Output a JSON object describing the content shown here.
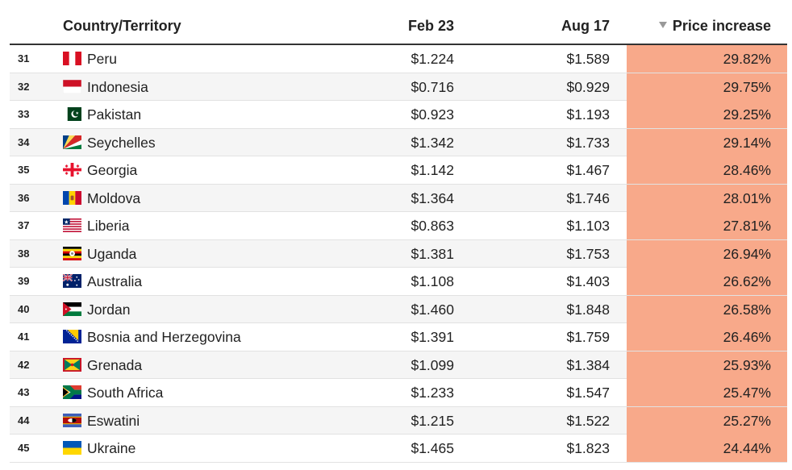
{
  "table": {
    "headers": {
      "country": "Country/Territory",
      "feb": "Feb 23",
      "aug": "Aug 17",
      "increase": "Price increase"
    },
    "sort": {
      "column": "increase",
      "direction": "descending",
      "icon": "sort-desc-icon"
    },
    "highlight_color": "#f8a98a",
    "rows": [
      {
        "rank": "31",
        "country": "Peru",
        "flag": "peru-flag-icon",
        "feb": "$1.224",
        "aug": "$1.589",
        "increase": "29.82%"
      },
      {
        "rank": "32",
        "country": "Indonesia",
        "flag": "indonesia-flag-icon",
        "feb": "$0.716",
        "aug": "$0.929",
        "increase": "29.75%"
      },
      {
        "rank": "33",
        "country": "Pakistan",
        "flag": "pakistan-flag-icon",
        "feb": "$0.923",
        "aug": "$1.193",
        "increase": "29.25%"
      },
      {
        "rank": "34",
        "country": "Seychelles",
        "flag": "seychelles-flag-icon",
        "feb": "$1.342",
        "aug": "$1.733",
        "increase": "29.14%"
      },
      {
        "rank": "35",
        "country": "Georgia",
        "flag": "georgia-flag-icon",
        "feb": "$1.142",
        "aug": "$1.467",
        "increase": "28.46%"
      },
      {
        "rank": "36",
        "country": "Moldova",
        "flag": "moldova-flag-icon",
        "feb": "$1.364",
        "aug": "$1.746",
        "increase": "28.01%"
      },
      {
        "rank": "37",
        "country": "Liberia",
        "flag": "liberia-flag-icon",
        "feb": "$0.863",
        "aug": "$1.103",
        "increase": "27.81%"
      },
      {
        "rank": "38",
        "country": "Uganda",
        "flag": "uganda-flag-icon",
        "feb": "$1.381",
        "aug": "$1.753",
        "increase": "26.94%"
      },
      {
        "rank": "39",
        "country": "Australia",
        "flag": "australia-flag-icon",
        "feb": "$1.108",
        "aug": "$1.403",
        "increase": "26.62%"
      },
      {
        "rank": "40",
        "country": "Jordan",
        "flag": "jordan-flag-icon",
        "feb": "$1.460",
        "aug": "$1.848",
        "increase": "26.58%"
      },
      {
        "rank": "41",
        "country": "Bosnia and Herzegovina",
        "flag": "bosnia-flag-icon",
        "feb": "$1.391",
        "aug": "$1.759",
        "increase": "26.46%"
      },
      {
        "rank": "42",
        "country": "Grenada",
        "flag": "grenada-flag-icon",
        "feb": "$1.099",
        "aug": "$1.384",
        "increase": "25.93%"
      },
      {
        "rank": "43",
        "country": "South Africa",
        "flag": "south-africa-flag-icon",
        "feb": "$1.233",
        "aug": "$1.547",
        "increase": "25.47%"
      },
      {
        "rank": "44",
        "country": "Eswatini",
        "flag": "eswatini-flag-icon",
        "feb": "$1.215",
        "aug": "$1.522",
        "increase": "25.27%"
      },
      {
        "rank": "45",
        "country": "Ukraine",
        "flag": "ukraine-flag-icon",
        "feb": "$1.465",
        "aug": "$1.823",
        "increase": "24.44%"
      }
    ]
  }
}
